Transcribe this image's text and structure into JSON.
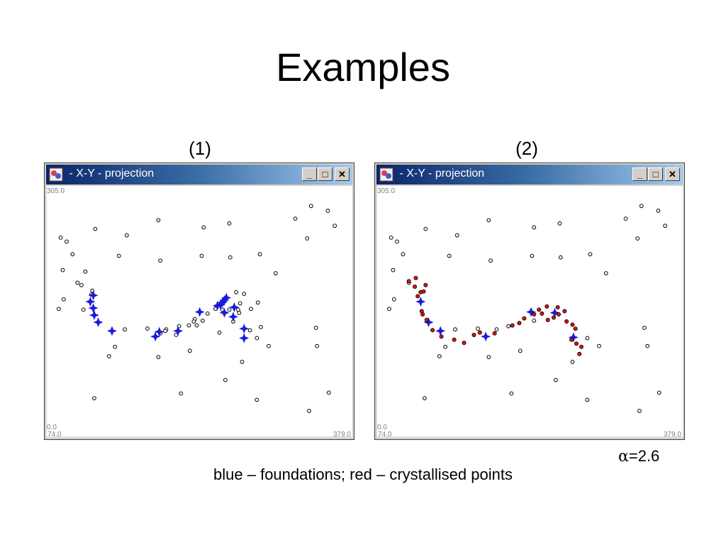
{
  "title": "Examples",
  "panels": [
    {
      "label": "(1)",
      "window_title": " - X-Y - projection"
    },
    {
      "label": "(2)",
      "window_title": " - X-Y - projection"
    }
  ],
  "window_buttons": {
    "minimize": "_",
    "maximize": "□",
    "close": "✕"
  },
  "alpha": {
    "symbol": "α",
    "text": "=2.6"
  },
  "caption": "blue – foundations; red – crystallised points",
  "chart_data": [
    {
      "type": "scatter",
      "title": "(1)",
      "xlim": [
        74.0,
        379.0
      ],
      "ylim": [
        0.0,
        305.0
      ],
      "tick_labels": {
        "y_top": "305.0",
        "y_bottom": "0.0",
        "x_left": "74.0",
        "x_right": "379.0"
      },
      "colors": {
        "points": "#000000",
        "foundations": "#1a1adc"
      },
      "series": [
        {
          "values": [
            [
              86,
              245
            ],
            [
              121,
              256
            ],
            [
              185,
              267
            ],
            [
              257,
              263
            ],
            [
              340,
              285
            ],
            [
              324,
              269
            ],
            [
              364,
              260
            ],
            [
              231,
              258
            ],
            [
              336,
              244
            ],
            [
              357,
              279
            ],
            [
              153,
              248
            ],
            [
              258,
              220
            ],
            [
              92,
              240
            ],
            [
              145,
              222
            ],
            [
              229,
              222
            ],
            [
              288,
              224
            ],
            [
              304,
              200
            ],
            [
              98,
              224
            ],
            [
              187,
              216
            ],
            [
              84,
              155
            ],
            [
              88,
              204
            ],
            [
              111,
              202
            ],
            [
              103,
              188
            ],
            [
              109,
              154
            ],
            [
              151,
              129
            ],
            [
              174,
              130
            ],
            [
              193,
              129
            ],
            [
              203,
              122
            ],
            [
              187,
              124
            ],
            [
              206,
              133
            ],
            [
              192,
              127
            ],
            [
              224,
              134
            ],
            [
              216,
              134
            ],
            [
              222,
              142
            ],
            [
              230,
              140
            ],
            [
              235,
              149
            ],
            [
              250,
              154
            ],
            [
              257,
              154
            ],
            [
              267,
              150
            ],
            [
              266,
              154
            ],
            [
              268,
              162
            ],
            [
              272,
              174
            ],
            [
              264,
              176
            ],
            [
              286,
              163
            ],
            [
              279,
              155
            ],
            [
              261,
              139
            ],
            [
              247,
              125
            ],
            [
              278,
              128
            ],
            [
              285,
              118
            ],
            [
              289,
              132
            ],
            [
              345,
              131
            ],
            [
              297,
              108
            ],
            [
              346,
              108
            ],
            [
              217,
              102
            ],
            [
              141,
              107
            ],
            [
              89,
              167
            ],
            [
              135,
              95
            ],
            [
              185,
              94
            ],
            [
              253,
              65
            ],
            [
              208,
              48
            ],
            [
              120,
              42
            ],
            [
              285,
              40
            ],
            [
              338,
              26
            ],
            [
              358,
              49
            ],
            [
              270,
              88
            ],
            [
              117,
              173
            ],
            [
              107,
              185
            ],
            [
              118,
              178
            ],
            [
              221,
              139
            ],
            [
              243,
              155
            ]
          ]
        },
        {
          "name": "foundations",
          "values": [
            [
              119,
              172
            ],
            [
              116,
              164
            ],
            [
              119,
              156
            ],
            [
              120,
              147
            ],
            [
              124,
              138
            ],
            [
              138,
              127
            ],
            [
              182,
              120
            ],
            [
              186,
              126
            ],
            [
              205,
              127
            ],
            [
              227,
              151
            ],
            [
              245,
              159
            ],
            [
              250,
              163
            ],
            [
              252,
              166
            ],
            [
              254,
              169
            ],
            [
              248,
              160
            ],
            [
              252,
              150
            ],
            [
              261,
              145
            ],
            [
              272,
              130
            ],
            [
              272,
              118
            ],
            [
              262,
              157
            ]
          ]
        }
      ]
    },
    {
      "type": "scatter",
      "title": "(2)",
      "xlim": [
        74.0,
        379.0
      ],
      "ylim": [
        0.0,
        305.0
      ],
      "tick_labels": {
        "y_top": "305.0",
        "y_bottom": "0.0",
        "x_left": "74.0",
        "x_right": "379.0"
      },
      "colors": {
        "points": "#000000",
        "foundations": "#1a1adc",
        "crystallised": "#e01010"
      },
      "series": [
        {
          "values": [
            [
              86,
              245
            ],
            [
              121,
              256
            ],
            [
              185,
              267
            ],
            [
              257,
              263
            ],
            [
              340,
              285
            ],
            [
              324,
              269
            ],
            [
              364,
              260
            ],
            [
              231,
              258
            ],
            [
              336,
              244
            ],
            [
              357,
              279
            ],
            [
              153,
              248
            ],
            [
              258,
              220
            ],
            [
              92,
              240
            ],
            [
              145,
              222
            ],
            [
              229,
              222
            ],
            [
              288,
              224
            ],
            [
              304,
              200
            ],
            [
              98,
              224
            ],
            [
              187,
              216
            ],
            [
              84,
              155
            ],
            [
              88,
              204
            ],
            [
              104,
              188
            ],
            [
              151,
              129
            ],
            [
              174,
              130
            ],
            [
              193,
              129
            ],
            [
              205,
              133
            ],
            [
              231,
              140
            ],
            [
              285,
              118
            ],
            [
              343,
              131
            ],
            [
              297,
              108
            ],
            [
              346,
              108
            ],
            [
              217,
              102
            ],
            [
              141,
              107
            ],
            [
              89,
              167
            ],
            [
              135,
              95
            ],
            [
              185,
              94
            ],
            [
              253,
              65
            ],
            [
              208,
              48
            ],
            [
              120,
              42
            ],
            [
              285,
              40
            ],
            [
              338,
              26
            ],
            [
              358,
              49
            ],
            [
              270,
              88
            ]
          ]
        },
        {
          "name": "foundations",
          "values": [
            [
              116,
              164
            ],
            [
              124,
              138
            ],
            [
              136,
              127
            ],
            [
              182,
              120
            ],
            [
              228,
              151
            ],
            [
              252,
              150
            ],
            [
              271,
              119
            ]
          ]
        },
        {
          "name": "crystallised",
          "values": [
            [
              104,
              190
            ],
            [
              111,
              194
            ],
            [
              110,
              183
            ],
            [
              121,
              185
            ],
            [
              116,
              176
            ],
            [
              113,
              171
            ],
            [
              119,
              177
            ],
            [
              117,
              152
            ],
            [
              122,
              141
            ],
            [
              118,
              148
            ],
            [
              128,
              128
            ],
            [
              137,
              120
            ],
            [
              150,
              116
            ],
            [
              160,
              112
            ],
            [
              170,
              122
            ],
            [
              176,
              125
            ],
            [
              191,
              124
            ],
            [
              209,
              134
            ],
            [
              216,
              137
            ],
            [
              221,
              143
            ],
            [
              231,
              148
            ],
            [
              236,
              154
            ],
            [
              239,
              149
            ],
            [
              244,
              158
            ],
            [
              245,
              141
            ],
            [
              251,
              144
            ],
            [
              255,
              157
            ],
            [
              256,
              148
            ],
            [
              262,
              152
            ],
            [
              264,
              139
            ],
            [
              270,
              135
            ],
            [
              273,
              130
            ],
            [
              269,
              116
            ],
            [
              274,
              111
            ],
            [
              279,
              107
            ],
            [
              277,
              98
            ]
          ]
        }
      ]
    }
  ]
}
